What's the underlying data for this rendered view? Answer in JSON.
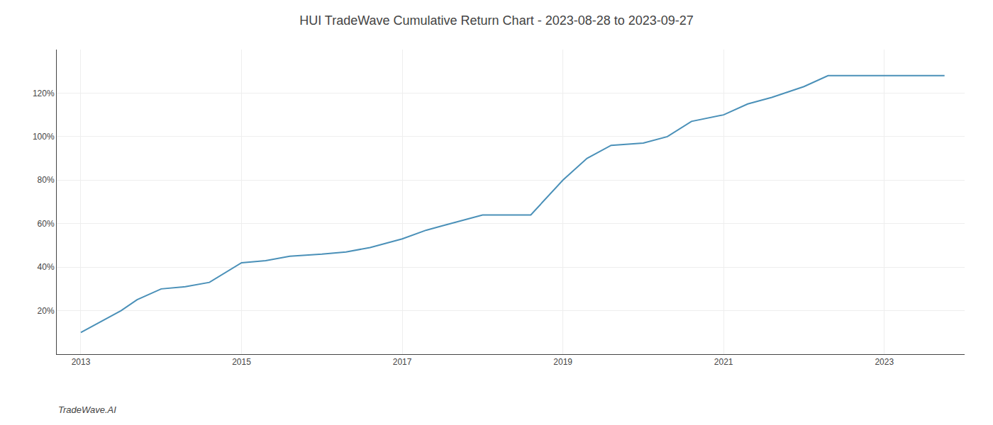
{
  "chart_data": {
    "type": "line",
    "title": "HUI TradeWave Cumulative Return Chart - 2023-08-28 to 2023-09-27",
    "annotations": [
      {
        "text": "TradeWave.AI"
      }
    ],
    "x": [
      2013.0,
      2013.2,
      2013.5,
      2013.7,
      2014.0,
      2014.3,
      2014.6,
      2015.0,
      2015.3,
      2015.6,
      2016.0,
      2016.3,
      2016.6,
      2017.0,
      2017.3,
      2017.5,
      2017.8,
      2018.0,
      2018.3,
      2018.6,
      2019.0,
      2019.3,
      2019.6,
      2020.0,
      2020.3,
      2020.6,
      2021.0,
      2021.3,
      2021.6,
      2022.0,
      2022.3,
      2022.6,
      2022.8,
      2023.0,
      2023.5,
      2023.75
    ],
    "values": [
      10,
      14,
      20,
      25,
      30,
      31,
      33,
      42,
      43,
      45,
      46,
      47,
      49,
      53,
      57,
      59,
      62,
      64,
      64,
      64,
      80,
      90,
      96,
      97,
      100,
      107,
      110,
      115,
      118,
      123,
      128,
      128,
      128,
      128,
      128,
      128
    ],
    "color": "#4a90b8",
    "xlim": [
      2012.7,
      2024.0
    ],
    "xticks": [
      2013,
      2015,
      2017,
      2019,
      2021,
      2023
    ],
    "ylim": [
      0,
      140
    ],
    "yticks": [
      {
        "value": 20,
        "label": "20%"
      },
      {
        "value": 40,
        "label": "40%"
      },
      {
        "value": 60,
        "label": "60%"
      },
      {
        "value": 80,
        "label": "80%"
      },
      {
        "value": 100,
        "label": "100%"
      },
      {
        "value": 120,
        "label": "120%"
      }
    ],
    "grid": true
  }
}
